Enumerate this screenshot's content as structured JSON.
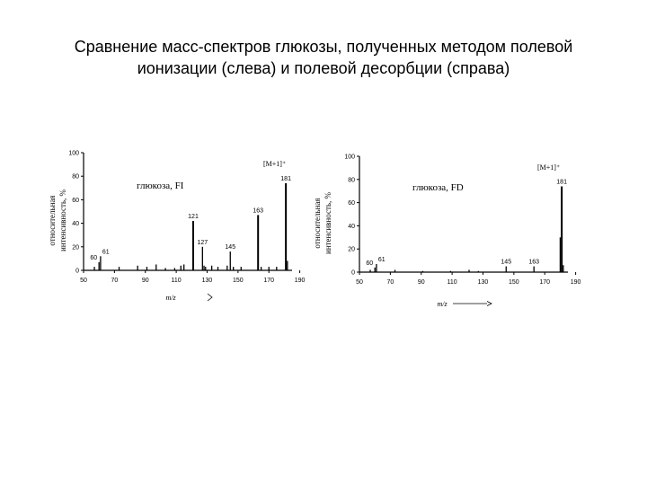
{
  "slide": {
    "title_line1": "Сравнение масс-спектров глюкозы, полученных методом полевой",
    "title_line2": "ионизации (слева) и полевой десорбции (справа)"
  },
  "chart_data": [
    {
      "type": "bar",
      "panel_label": "глюкоза, FI",
      "ylabel_line1": "относительная",
      "ylabel_line2": "интенсивность, %",
      "xlabel": "m/z",
      "ion_label": "[M+1]⁺",
      "xlim": [
        50,
        185
      ],
      "ylim": [
        0,
        100
      ],
      "xticks": [
        50,
        70,
        90,
        110,
        130,
        150,
        170,
        190
      ],
      "yticks": [
        0,
        20,
        40,
        60,
        80,
        100
      ],
      "peaks": [
        {
          "x": 57,
          "y": 3
        },
        {
          "x": 60,
          "y": 7,
          "label": "60"
        },
        {
          "x": 61,
          "y": 12,
          "label": "61"
        },
        {
          "x": 73,
          "y": 3
        },
        {
          "x": 85,
          "y": 4
        },
        {
          "x": 91,
          "y": 3
        },
        {
          "x": 97,
          "y": 5
        },
        {
          "x": 103,
          "y": 2
        },
        {
          "x": 109,
          "y": 2
        },
        {
          "x": 113,
          "y": 4
        },
        {
          "x": 115,
          "y": 5
        },
        {
          "x": 121,
          "y": 42,
          "label": "121"
        },
        {
          "x": 127,
          "y": 20,
          "label": "127"
        },
        {
          "x": 128,
          "y": 4
        },
        {
          "x": 129,
          "y": 3
        },
        {
          "x": 133,
          "y": 4
        },
        {
          "x": 137,
          "y": 3
        },
        {
          "x": 143,
          "y": 4
        },
        {
          "x": 145,
          "y": 16,
          "label": "145"
        },
        {
          "x": 147,
          "y": 3
        },
        {
          "x": 152,
          "y": 3
        },
        {
          "x": 163,
          "y": 47,
          "label": "163"
        },
        {
          "x": 165,
          "y": 3
        },
        {
          "x": 170,
          "y": 3
        },
        {
          "x": 175,
          "y": 3
        },
        {
          "x": 181,
          "y": 74,
          "label": "181"
        },
        {
          "x": 182,
          "y": 8
        }
      ]
    },
    {
      "type": "bar",
      "panel_label": "глюкоза, FD",
      "ylabel_line1": "относительная",
      "ylabel_line2": "интенсивность, %",
      "xlabel": "m/z",
      "ion_label": "[M+1]⁺",
      "xlim": [
        50,
        185
      ],
      "ylim": [
        0,
        100
      ],
      "xticks": [
        50,
        70,
        90,
        110,
        130,
        150,
        170,
        190
      ],
      "yticks": [
        0,
        20,
        40,
        60,
        80,
        100
      ],
      "peaks": [
        {
          "x": 57,
          "y": 2
        },
        {
          "x": 60,
          "y": 4,
          "label": "60"
        },
        {
          "x": 61,
          "y": 7,
          "label": "61"
        },
        {
          "x": 73,
          "y": 2
        },
        {
          "x": 91,
          "y": 1
        },
        {
          "x": 109,
          "y": 1
        },
        {
          "x": 121,
          "y": 2
        },
        {
          "x": 127,
          "y": 1
        },
        {
          "x": 145,
          "y": 5,
          "label": "145"
        },
        {
          "x": 163,
          "y": 5,
          "label": "163"
        },
        {
          "x": 180,
          "y": 30
        },
        {
          "x": 181,
          "y": 74,
          "label": "181"
        },
        {
          "x": 182,
          "y": 6
        }
      ]
    }
  ]
}
